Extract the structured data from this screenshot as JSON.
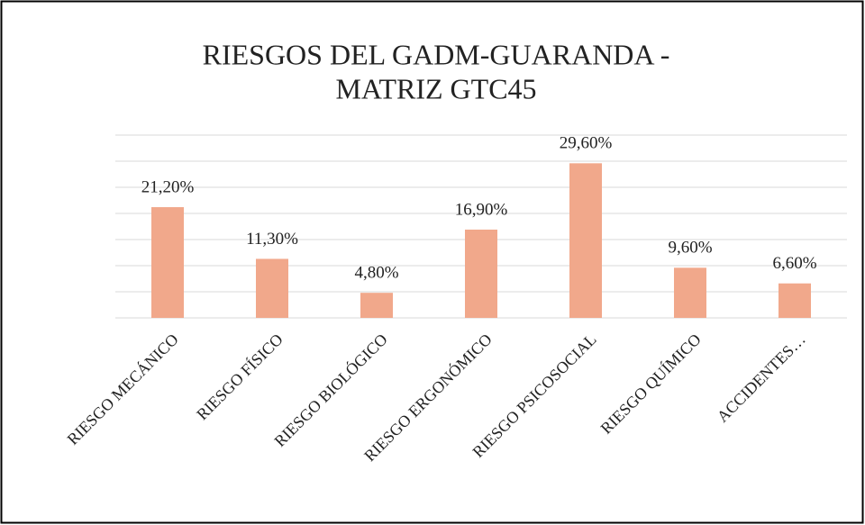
{
  "chart_data": {
    "type": "bar",
    "title": [
      "RIESGOS DEL GADM-GUARANDA -",
      "MATRIZ GTC45"
    ],
    "categories": [
      "RIESGO MECÁNICO",
      "RIESGO FÍSICO",
      "RIESGO BIOLÓGICO",
      "RIESGO ERGONÓMICO",
      "RIESGO PSICOSOCIAL",
      "RIESGO QUÍMICO",
      "ACCIDENTES…"
    ],
    "values": [
      21.2,
      11.3,
      4.8,
      16.9,
      29.6,
      9.6,
      6.6
    ],
    "value_labels": [
      "21,20%",
      "11,30%",
      "4,80%",
      "16,90%",
      "29,60%",
      "9,60%",
      "6,60%"
    ],
    "color": "#f1a88b",
    "ylim": [
      0,
      35
    ],
    "yticks": [
      0,
      5,
      10,
      15,
      20,
      25,
      30,
      35
    ],
    "grid": true
  }
}
